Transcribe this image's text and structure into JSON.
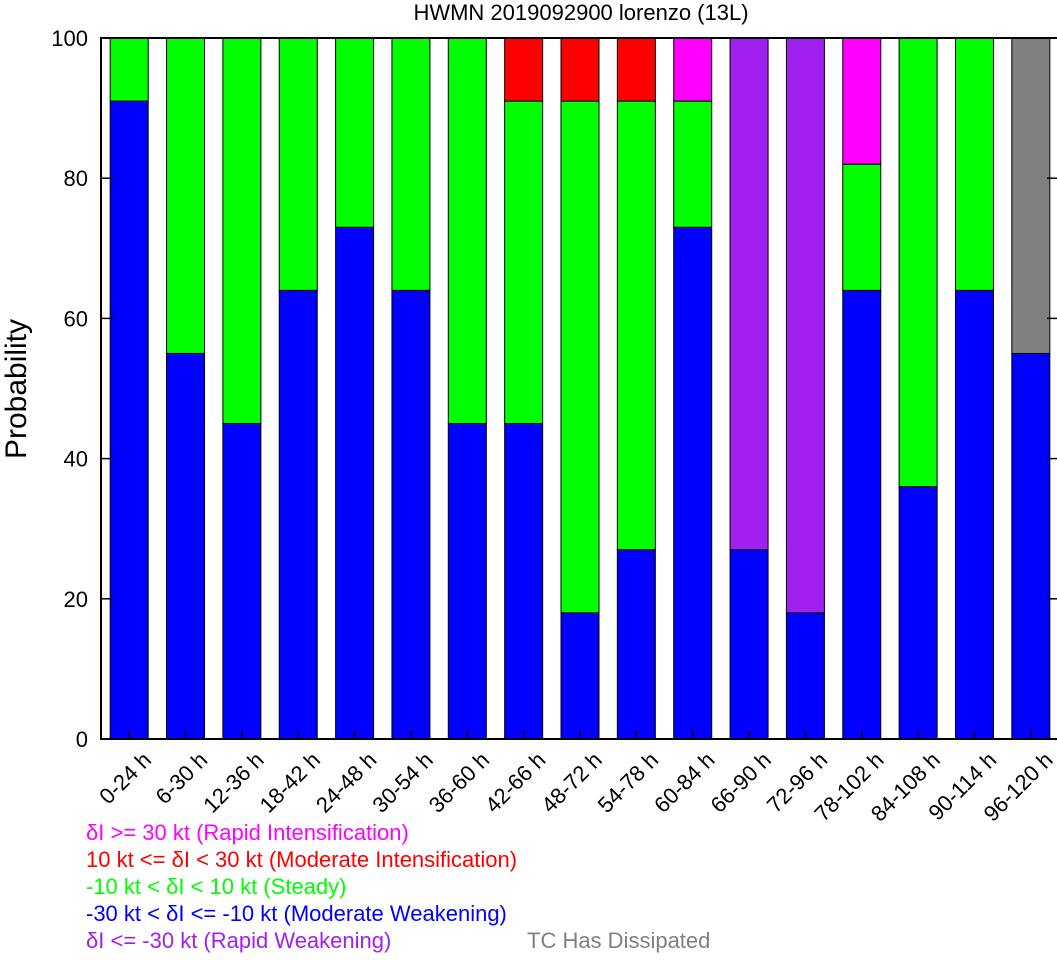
{
  "chart_data": {
    "type": "bar",
    "stacked": true,
    "title": "HWMN 2019092900 lorenzo (13L)",
    "xlabel": "",
    "ylabel": "Probability",
    "ylim": [
      0,
      100
    ],
    "yticks": [
      "0",
      "20",
      "40",
      "60",
      "80",
      "100"
    ],
    "grid": false,
    "categories": [
      "0-24 h",
      "6-30 h",
      "12-36 h",
      "18-42 h",
      "24-48 h",
      "30-54 h",
      "36-60 h",
      "42-66 h",
      "48-72 h",
      "54-78 h",
      "60-84 h",
      "66-90 h",
      "72-96 h",
      "78-102 h",
      "84-108 h",
      "90-114 h",
      "96-120 h"
    ],
    "series": [
      {
        "key": "rw",
        "color": "#a020f0",
        "values": [
          0,
          0,
          0,
          0,
          0,
          0,
          0,
          0,
          0,
          0,
          0,
          73,
          82,
          0,
          0,
          0,
          0
        ]
      },
      {
        "key": "mw",
        "color": "#0000ff",
        "values": [
          91,
          55,
          45,
          64,
          73,
          64,
          45,
          45,
          18,
          27,
          73,
          27,
          18,
          64,
          36,
          64,
          55
        ]
      },
      {
        "key": "steady",
        "color": "#00ff00",
        "values": [
          9,
          45,
          55,
          36,
          27,
          36,
          55,
          46,
          73,
          64,
          18,
          0,
          0,
          18,
          64,
          36,
          0
        ]
      },
      {
        "key": "mi",
        "color": "#ff0000",
        "values": [
          0,
          0,
          0,
          0,
          0,
          0,
          0,
          9,
          9,
          9,
          0,
          0,
          0,
          0,
          0,
          0,
          0
        ]
      },
      {
        "key": "ri",
        "color": "#ff00ff",
        "values": [
          0,
          0,
          0,
          0,
          0,
          0,
          0,
          0,
          0,
          0,
          9,
          0,
          0,
          18,
          0,
          0,
          0
        ]
      },
      {
        "key": "dissipated",
        "color": "#808080",
        "values": [
          0,
          0,
          0,
          0,
          0,
          0,
          0,
          0,
          0,
          0,
          0,
          0,
          0,
          0,
          0,
          0,
          45
        ]
      }
    ],
    "stack_order": [
      "mw",
      "steady",
      "mi",
      "rw",
      "ri",
      "dissipated"
    ]
  },
  "legend": [
    {
      "text": "δI >= 30 kt (Rapid Intensification)",
      "color": "#ff00ff"
    },
    {
      "text": "10 kt <= δI < 30 kt (Moderate Intensification)",
      "color": "#ff0000"
    },
    {
      "text": "-10 kt < δI < 10 kt (Steady)",
      "color": "#00ff00"
    },
    {
      "text": "-30 kt < δI <= -10 kt (Moderate Weakening)",
      "color": "#0000ff"
    },
    {
      "text": "δI <= -30 kt (Rapid Weakening)",
      "color": "#a020f0"
    },
    {
      "text": "TC Has Dissipated",
      "color": "#808080"
    }
  ]
}
